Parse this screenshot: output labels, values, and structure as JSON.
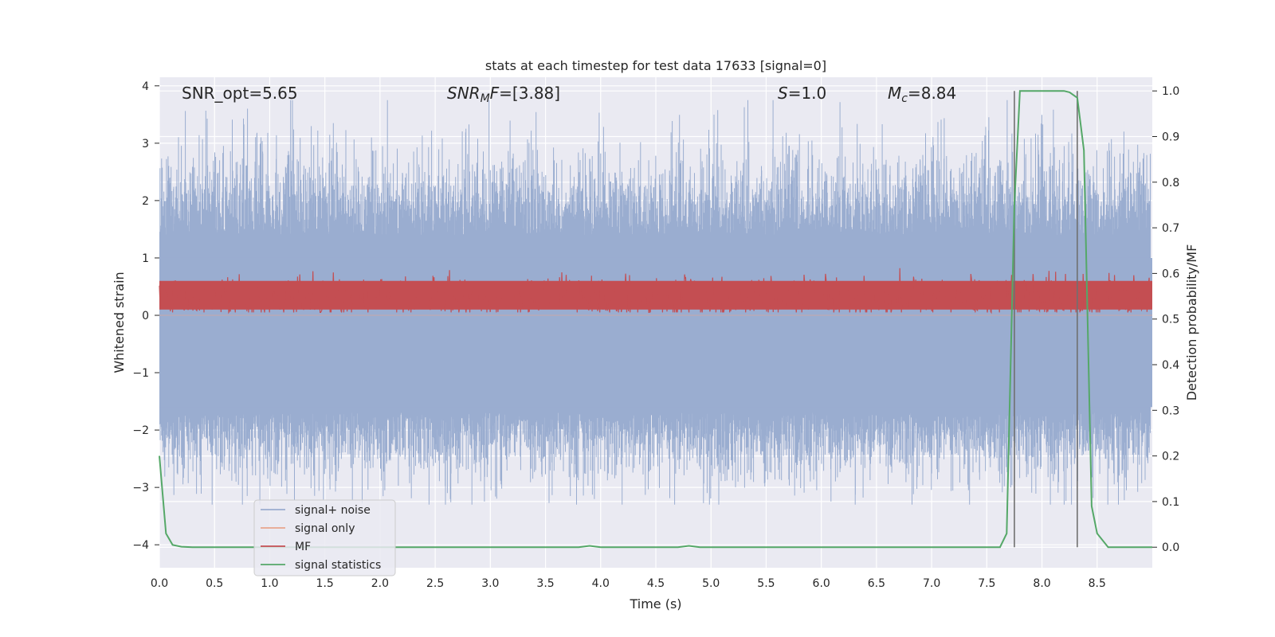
{
  "chart_data": {
    "type": "line",
    "title": "stats at each timestep for test data 17633 [signal=0]",
    "xlabel": "Time (s)",
    "ylabel": "Whitened strain",
    "y2label": "Detection probability/MF",
    "xlim": [
      0.0,
      9.0
    ],
    "ylim": [
      -4.4,
      4.15
    ],
    "y2lim": [
      -0.045,
      1.03
    ],
    "x_ticks": [
      "0.0",
      "0.5",
      "1.0",
      "1.5",
      "2.0",
      "2.5",
      "3.0",
      "3.5",
      "4.0",
      "4.5",
      "5.0",
      "5.5",
      "6.0",
      "6.5",
      "7.0",
      "7.5",
      "8.0",
      "8.5"
    ],
    "y_ticks": [
      "−4",
      "−3",
      "−2",
      "−1",
      "0",
      "1",
      "2",
      "3",
      "4"
    ],
    "y2_ticks": [
      "0.0",
      "0.1",
      "0.2",
      "0.3",
      "0.4",
      "0.5",
      "0.6",
      "0.7",
      "0.8",
      "0.9",
      "1.0"
    ],
    "grid": true,
    "legend_position": "lower-left",
    "annotations": {
      "snr_opt": "SNR_opt=5.65",
      "snr_mf_main": "SNR",
      "snr_mf_sub": "M",
      "snr_mf_tail": "F",
      "snr_mf_value": "=[3.88]",
      "s_label": "S",
      "s_value": "=1.0",
      "mc_label": "M",
      "mc_sub": "c",
      "mc_value": "=8.84"
    },
    "series": [
      {
        "name": "signal+ noise",
        "color": "#9aadd0",
        "axis": "left",
        "description_values": {
          "envelope_min": -3.3,
          "envelope_max": 3.75,
          "band_low": -1.7,
          "band_high": 1.4
        }
      },
      {
        "name": "signal only",
        "color": "#e8a58c",
        "axis": "left",
        "values_constant": 0.0
      },
      {
        "name": "MF",
        "color": "#c44e52",
        "axis": "left",
        "description_values": {
          "band_low": 0.05,
          "band_high": 0.95
        }
      },
      {
        "name": "signal statistics",
        "color": "#55a868",
        "axis": "right",
        "x": [
          0.0,
          0.06,
          0.12,
          0.2,
          0.3,
          0.5,
          1.0,
          2.0,
          3.0,
          3.8,
          3.9,
          4.0,
          4.7,
          4.8,
          4.9,
          5.5,
          6.5,
          7.4,
          7.62,
          7.68,
          7.75,
          7.8,
          7.9,
          8.0,
          8.1,
          8.2,
          8.25,
          8.32,
          8.38,
          8.45,
          8.5,
          8.6,
          9.0
        ],
        "y": [
          0.2,
          0.03,
          0.005,
          0.001,
          0.0,
          0.0,
          0.0,
          0.0,
          0.0,
          0.0,
          0.003,
          0.0,
          0.0,
          0.003,
          0.0,
          0.0,
          0.0,
          0.0,
          0.0,
          0.03,
          0.75,
          1.0,
          1.0,
          1.0,
          1.0,
          1.0,
          0.997,
          0.985,
          0.87,
          0.09,
          0.03,
          0.0,
          0.0
        ]
      }
    ],
    "vlines": [
      7.75,
      8.32
    ],
    "vline_color": "#707070"
  },
  "colors": {
    "plot_background": "#e9e9f1",
    "grid": "#ffffff",
    "noise": "#9aadd0",
    "mf": "#c44e52",
    "signal_only": "#e8a58c",
    "stat": "#55a868"
  }
}
